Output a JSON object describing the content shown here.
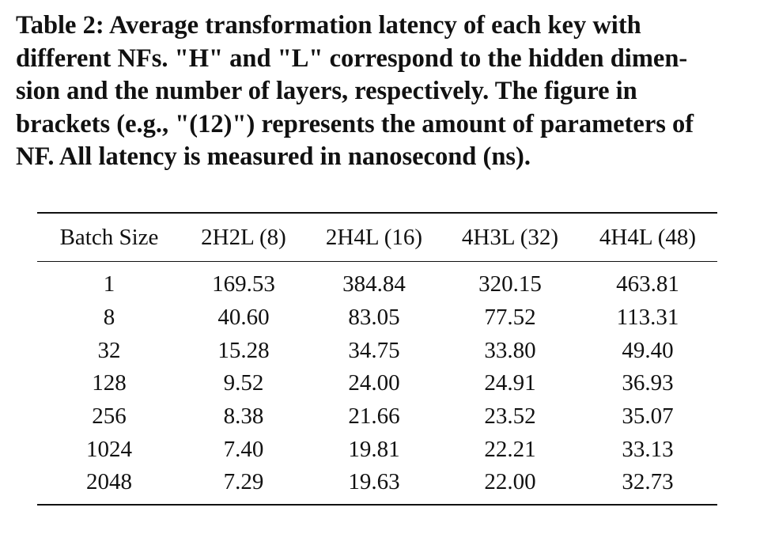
{
  "caption": {
    "lines": [
      "Table 2: Average transformation latency of each key with",
      "different NFs. \"H\" and \"L\" correspond to the hidden dimen-",
      "sion and the number of layers, respectively. The figure in",
      "brackets (e.g., \"(12)\") represents the amount of parameters of",
      "NF. All latency is measured in nanosecond (ns)."
    ]
  },
  "table": {
    "headers": [
      "Batch Size",
      "2H2L (8)",
      "2H4L (16)",
      "4H3L (32)",
      "4H4L (48)"
    ],
    "rows": [
      [
        "1",
        "169.53",
        "384.84",
        "320.15",
        "463.81"
      ],
      [
        "8",
        "40.60",
        "83.05",
        "77.52",
        "113.31"
      ],
      [
        "32",
        "15.28",
        "34.75",
        "33.80",
        "49.40"
      ],
      [
        "128",
        "9.52",
        "24.00",
        "24.91",
        "36.93"
      ],
      [
        "256",
        "8.38",
        "21.66",
        "23.52",
        "35.07"
      ],
      [
        "1024",
        "7.40",
        "19.81",
        "22.21",
        "33.13"
      ],
      [
        "2048",
        "7.29",
        "19.63",
        "22.00",
        "32.73"
      ]
    ]
  }
}
